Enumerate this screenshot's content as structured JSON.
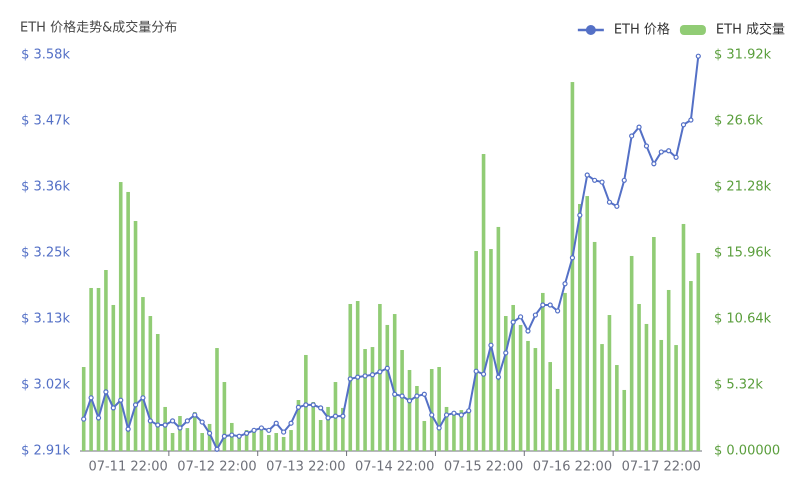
{
  "chart_data": {
    "type": "bar-line",
    "title": "ETH 价格走势&成交量分布",
    "legend": "top-right",
    "categories": [
      null,
      null,
      null,
      null,
      null,
      null,
      "07-11 22:00",
      null,
      null,
      null,
      null,
      null,
      null,
      null,
      null,
      null,
      null,
      null,
      "07-12 22:00",
      null,
      null,
      null,
      null,
      null,
      null,
      null,
      null,
      null,
      null,
      null,
      "07-13 22:00",
      null,
      null,
      null,
      null,
      null,
      null,
      null,
      null,
      null,
      null,
      null,
      "07-14 22:00",
      null,
      null,
      null,
      null,
      null,
      null,
      null,
      null,
      null,
      null,
      null,
      "07-15 22:00",
      null,
      null,
      null,
      null,
      null,
      null,
      null,
      null,
      null,
      null,
      null,
      "07-16 22:00",
      null,
      null,
      null,
      null,
      null,
      null,
      null,
      null,
      null,
      null,
      null,
      "07-17 22:00",
      null,
      null,
      null,
      null,
      null
    ],
    "series": [
      {
        "name": "ETH 价格",
        "type": "line",
        "color": "#5470c6",
        "axis": "y",
        "values": [
          2964,
          3000,
          2966,
          3010,
          2983,
          2996,
          2947,
          2988,
          3000,
          2961,
          2954,
          2954,
          2961,
          2949,
          2961,
          2971,
          2959,
          2940,
          2913,
          2935,
          2937,
          2935,
          2940,
          2945,
          2949,
          2945,
          2957,
          2942,
          2957,
          2984,
          2988,
          2988,
          2983,
          2966,
          2969,
          2969,
          3032,
          3035,
          3037,
          3039,
          3044,
          3050,
          3006,
          3003,
          2995,
          3003,
          3006,
          2971,
          2949,
          2971,
          2974,
          2971,
          2978,
          3045,
          3040,
          3089,
          3035,
          3076,
          3128,
          3137,
          3113,
          3140,
          3157,
          3157,
          3147,
          3193,
          3237,
          3309,
          3377,
          3368,
          3365,
          3331,
          3324,
          3368,
          3443,
          3458,
          3426,
          3396,
          3416,
          3418,
          3407,
          3462,
          3470,
          3578
        ]
      },
      {
        "name": "ETH 成交量",
        "type": "bar",
        "color": "#91cc75",
        "axis": "y2",
        "values": [
          6770,
          13140,
          13140,
          14590,
          11770,
          21680,
          20880,
          18540,
          12410,
          10880,
          9430,
          3550,
          1450,
          2820,
          1850,
          3140,
          1450,
          2180,
          8300,
          5560,
          2260,
          1130,
          1690,
          1530,
          1690,
          1290,
          1450,
          1130,
          1690,
          4110,
          7740,
          3950,
          2500,
          3550,
          5560,
          3470,
          11850,
          12090,
          8220,
          8380,
          11850,
          10160,
          11040,
          8140,
          6530,
          5240,
          2420,
          6610,
          6770,
          3550,
          3060,
          3300,
          3390,
          16120,
          23940,
          16280,
          18060,
          10880,
          11770,
          10160,
          8870,
          8300,
          12740,
          7170,
          5000,
          12740,
          29740,
          19910,
          20550,
          16850,
          8620,
          10960,
          6930,
          4920,
          15720,
          11850,
          10240,
          17250,
          8950,
          12980,
          8540,
          18300,
          13700,
          15960
        ]
      }
    ],
    "ylim": [
      2910,
      3580
    ],
    "yticks": [
      {
        "value": 2910,
        "label": "$ 2.91k"
      },
      {
        "value": 3021.7,
        "label": "$ 3.02k"
      },
      {
        "value": 3133.3,
        "label": "$ 3.13k"
      },
      {
        "value": 3245,
        "label": "$ 3.25k"
      },
      {
        "value": 3356.7,
        "label": "$ 3.36k"
      },
      {
        "value": 3468.3,
        "label": "$ 3.47k"
      },
      {
        "value": 3580,
        "label": "$ 3.58k"
      }
    ],
    "y2lim": [
      0,
      31920
    ],
    "y2ticks": [
      {
        "value": 0,
        "label": "$ 0.00000"
      },
      {
        "value": 5320,
        "label": "$ 5.32k"
      },
      {
        "value": 10640,
        "label": "$ 10.64k"
      },
      {
        "value": 15960,
        "label": "$ 15.96k"
      },
      {
        "value": 21280,
        "label": "$ 21.28k"
      },
      {
        "value": 26600,
        "label": "$ 26.6k"
      },
      {
        "value": 31920,
        "label": "$ 31.92k"
      }
    ]
  }
}
